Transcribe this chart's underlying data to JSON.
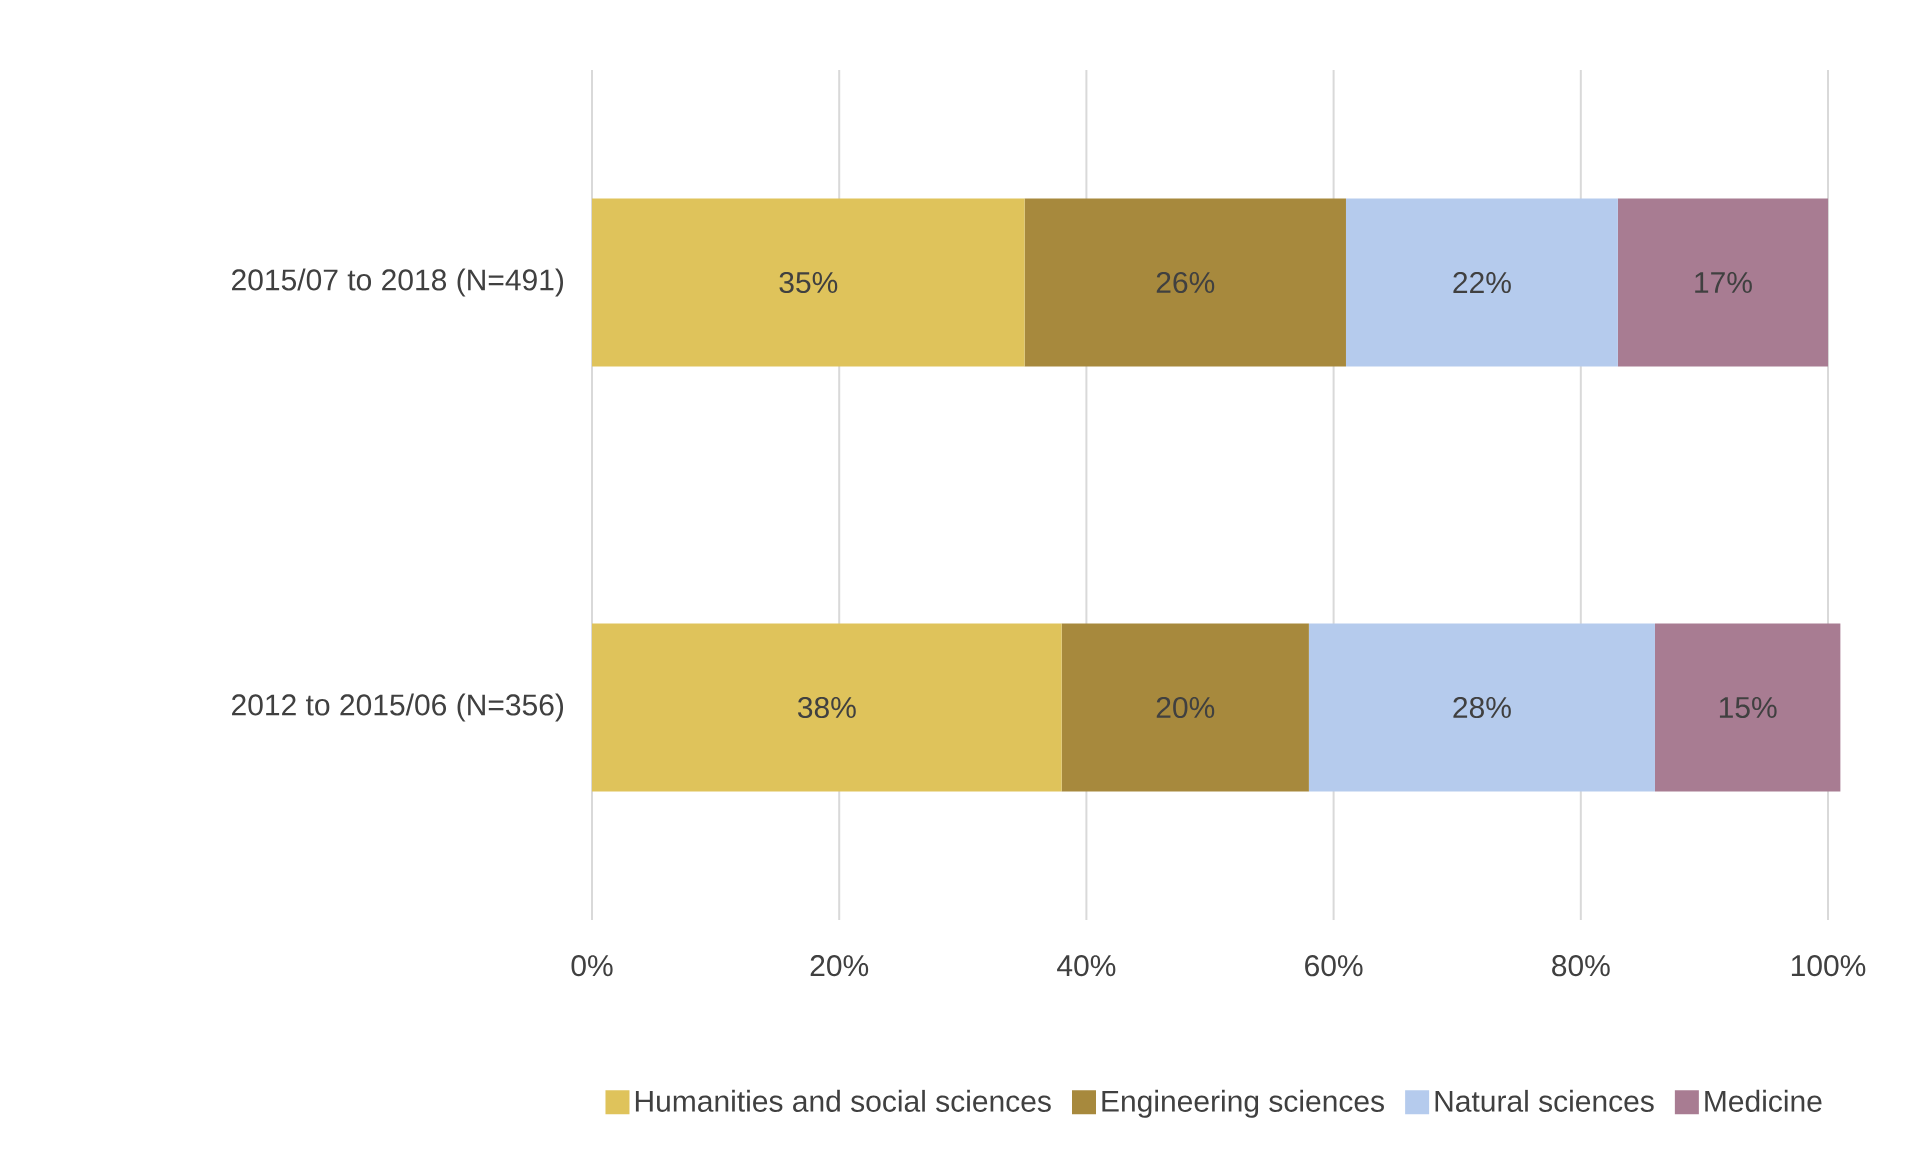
{
  "chart_data": {
    "type": "bar",
    "orientation": "horizontal",
    "stacked": true,
    "categories": [
      "2015/07 to 2018 (N=491)",
      "2012 to 2015/06 (N=356)"
    ],
    "series": [
      {
        "name": "Humanities and social sciences",
        "color": "#dfc35b",
        "values": [
          35,
          38
        ],
        "value_labels": [
          "35%",
          "38%"
        ]
      },
      {
        "name": "Engineering sciences",
        "color": "#a7893d",
        "values": [
          26,
          20
        ],
        "value_labels": [
          "26%",
          "20%"
        ]
      },
      {
        "name": "Natural sciences",
        "color": "#b5cbed",
        "values": [
          22,
          28
        ],
        "value_labels": [
          "22%",
          "28%"
        ]
      },
      {
        "name": "Medicine",
        "color": "#a87c92",
        "values": [
          17,
          15
        ],
        "value_labels": [
          "17%",
          "15%"
        ]
      }
    ],
    "xlim": [
      0,
      101
    ],
    "xticks": [
      {
        "value": 0,
        "label": "0%"
      },
      {
        "value": 20,
        "label": "20%"
      },
      {
        "value": 40,
        "label": "40%"
      },
      {
        "value": 60,
        "label": "60%"
      },
      {
        "value": 80,
        "label": "80%"
      },
      {
        "value": 100,
        "label": "100%"
      }
    ],
    "grid": "x",
    "legend": "bottom"
  }
}
